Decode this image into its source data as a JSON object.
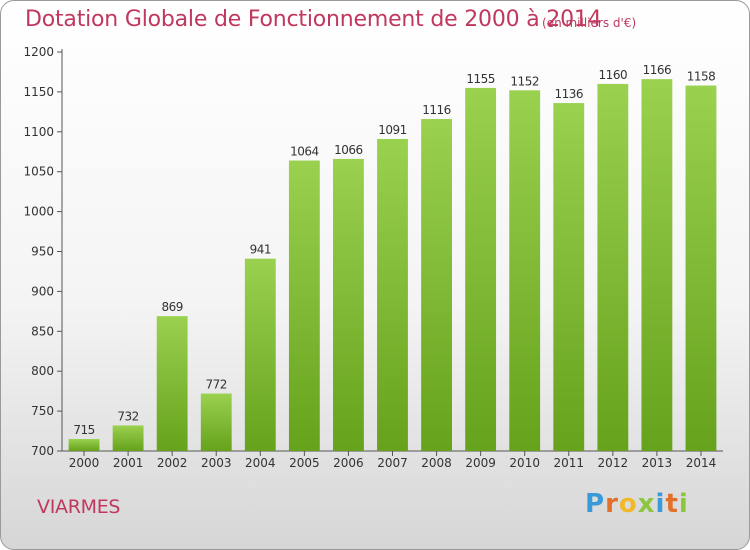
{
  "header": {
    "title": "Dotation Globale de Fonctionnement de 2000 à 2014",
    "subtitle": "(en milliers d'€)"
  },
  "footer": {
    "commune": "VIARMES",
    "logo_letters": [
      "P",
      "r",
      "o",
      "x",
      "i",
      "t",
      "i"
    ],
    "logo_colors": [
      "#3a9ad9",
      "#e0702a",
      "#f0b82a",
      "#8cc63f",
      "#3a9ad9",
      "#e0702a",
      "#8cc63f"
    ]
  },
  "chart_data": {
    "type": "bar",
    "categories": [
      "2000",
      "2001",
      "2002",
      "2003",
      "2004",
      "2005",
      "2006",
      "2007",
      "2008",
      "2009",
      "2010",
      "2011",
      "2012",
      "2013",
      "2014"
    ],
    "values": [
      715,
      732,
      869,
      772,
      941,
      1064,
      1066,
      1091,
      1116,
      1155,
      1152,
      1136,
      1160,
      1166,
      1158
    ],
    "ylim": [
      700,
      1200
    ],
    "yticks": [
      700,
      750,
      800,
      850,
      900,
      950,
      1000,
      1050,
      1100,
      1150,
      1200
    ],
    "grid": false,
    "bar_color": "#8cc63f"
  }
}
